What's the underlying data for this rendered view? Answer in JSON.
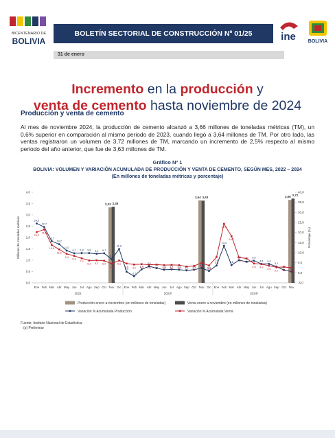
{
  "header": {
    "left_logo": [
      "BICENTENARIO DE",
      "BOLIVIA"
    ],
    "title": "BOLETÍN SECTORIAL DE CONSTRUCCIÓN Nº 01/25",
    "ine_logo": "ine",
    "right_logo": "BOLIVIA",
    "date": "31 de enero"
  },
  "headline": {
    "parts": [
      "Incremento",
      " en la ",
      "producción",
      " y",
      "venta de cemento",
      " hasta noviembre de 2024"
    ]
  },
  "section": {
    "heading": "Producción y venta de cemento",
    "paragraph": "Al mes de noviembre 2024, la producción de cemento alcanzó a 3,66 millones de toneladas métricas (TM), un 0,6% superior en comparación al mismo periodo de 2023, cuando llegó a 3,64 millones de TM. Por otro lado, las ventas registraron un volumen de 3,72 millones de TM, marcando un incremento de 2,5% respecto al mismo periodo del año anterior, que fue de 3,63 millones de TM."
  },
  "chart_data": {
    "type": "combo",
    "label": "Gráfico Nº 1",
    "title": "BOLIVIA: VOLUMEN Y VARIACIÓN ACUMULADA DE PRODUCCIÓN Y VENTA DE CEMENTO, SEGÚN MES, 2022 – 2024",
    "subtitle": "(En millones de toneladas métricas y porcentaje)",
    "categories": [
      "Ene",
      "Feb",
      "Mar",
      "Abr",
      "May",
      "Jun",
      "Jul",
      "Ago",
      "Sep",
      "Oct",
      "Nov",
      "Dic",
      "Ene",
      "Feb",
      "Mar",
      "Abr",
      "May",
      "Jun",
      "Jul",
      "Ago",
      "Sep",
      "Oct",
      "Nov",
      "Dic",
      "Ene",
      "Feb",
      "Mar",
      "Abr",
      "May",
      "Jun",
      "Jul",
      "Ago",
      "Sep",
      "Oct",
      "Nov"
    ],
    "x_groups": [
      "2022",
      "2023ᵖ",
      "2024ᵖ"
    ],
    "ylabel": "Millones de toneladas métricas",
    "y2label": "Porcentaje (%)",
    "ylim": [
      0,
      4
    ],
    "yticks": [
      {
        "value": 0,
        "label": "0,0"
      },
      {
        "value": 0.5,
        "label": "0,5"
      },
      {
        "value": 1,
        "label": "1,0"
      },
      {
        "value": 1.5,
        "label": "1,5"
      },
      {
        "value": 2,
        "label": "2,0"
      },
      {
        "value": 2.5,
        "label": "2,5"
      },
      {
        "value": 3,
        "label": "3,0"
      },
      {
        "value": 3.5,
        "label": "3,5"
      },
      {
        "value": 4,
        "label": "4,0"
      }
    ],
    "y2lim": [
      -5,
      40
    ],
    "y2ticks": [
      {
        "value": -5,
        "label": "-5,0"
      },
      {
        "value": 0,
        "label": "0,0"
      },
      {
        "value": 5,
        "label": "5,0"
      },
      {
        "value": 10,
        "label": "10,0"
      },
      {
        "value": 15,
        "label": "15,0"
      },
      {
        "value": 20,
        "label": "20,0"
      },
      {
        "value": 25,
        "label": "25,0"
      },
      {
        "value": 30,
        "label": "30,0"
      },
      {
        "value": 35,
        "label": "35,0"
      },
      {
        "value": 40,
        "label": "40,0"
      }
    ],
    "series": [
      {
        "name": "Producción enero a noviembre (en millones de toneladas)",
        "type": "bar",
        "color": "#a39382",
        "values": [
          null,
          null,
          null,
          null,
          null,
          null,
          null,
          null,
          null,
          null,
          3.33,
          null,
          null,
          null,
          null,
          null,
          null,
          null,
          null,
          null,
          null,
          null,
          3.64,
          null,
          null,
          null,
          null,
          null,
          null,
          null,
          null,
          null,
          null,
          null,
          3.66
        ],
        "value_labels": [
          null,
          null,
          null,
          null,
          null,
          null,
          null,
          null,
          null,
          null,
          "3,33",
          null,
          null,
          null,
          null,
          null,
          null,
          null,
          null,
          null,
          null,
          null,
          "3,64",
          null,
          null,
          null,
          null,
          null,
          null,
          null,
          null,
          null,
          null,
          null,
          "3,66"
        ]
      },
      {
        "name": "Venta enero a noviembre (en millones de toneladas)",
        "type": "bar",
        "color": "#4d4d4d",
        "values": [
          null,
          null,
          null,
          null,
          null,
          null,
          null,
          null,
          null,
          null,
          3.36,
          null,
          null,
          null,
          null,
          null,
          null,
          null,
          null,
          null,
          null,
          null,
          3.63,
          null,
          null,
          null,
          null,
          null,
          null,
          null,
          null,
          null,
          null,
          null,
          3.72
        ],
        "value_labels": [
          null,
          null,
          null,
          null,
          null,
          null,
          null,
          null,
          null,
          null,
          "3,36",
          null,
          null,
          null,
          null,
          null,
          null,
          null,
          null,
          null,
          null,
          null,
          "3,63",
          null,
          null,
          null,
          null,
          null,
          null,
          null,
          null,
          null,
          null,
          null,
          "3,72"
        ]
      },
      {
        "name": "Variación % Acumulada Producción",
        "type": "line",
        "axis": "y2",
        "color": "#1f3864",
        "marker": "circle",
        "values": [
          24.5,
          22.7,
          15.7,
          14.2,
          11.0,
          9.7,
          9.8,
          9.8,
          9.4,
          9.7,
          6.7,
          11.8,
          0.5,
          -1.7,
          1.7,
          3.2,
          2.3,
          1.5,
          1.7,
          1.5,
          1.2,
          1.5,
          2.4,
          0.9,
          3.6,
          13.4,
          3.8,
          6.3,
          5.5,
          6.0,
          4.4,
          4.4,
          3.1,
          1.4,
          0.6
        ],
        "value_labels": [
          "24,5",
          "22,7",
          "15,7",
          "14,2",
          "11,0",
          "9,7",
          "9,8",
          "9,8",
          "9,4",
          "9,7",
          "6,7",
          "11,8",
          "0,5",
          "-1,7",
          "1,7",
          "3,2",
          "2,3",
          "1,5",
          "1,7",
          "1,5",
          "1,2",
          "1,5",
          "2,4",
          "0,9",
          "3,6",
          "13,4",
          "3,8",
          "6,3",
          "5,5",
          "6,0",
          "4,4",
          "4,4",
          "3,1",
          "1,4",
          "0,6"
        ]
      },
      {
        "name": "Variación % Acumulada Venta",
        "type": "line",
        "axis": "y2",
        "color": "#c0262d",
        "marker": "square",
        "values": [
          20.2,
          21.5,
          13.8,
          11.6,
          9.4,
          8.4,
          7.2,
          6.1,
          6.2,
          6.0,
          4.5,
          6.1,
          4.6,
          4.1,
          4.3,
          4.0,
          4.1,
          3.8,
          3.9,
          3.8,
          3.1,
          3.4,
          4.9,
          3.6,
          7.8,
          24.3,
          18.2,
          7.6,
          7.1,
          4.6,
          4.3,
          3.5,
          2.7,
          2.9,
          2.5
        ],
        "value_labels": [
          "20,2",
          "21,5",
          "13,8",
          "11,6",
          "9,4",
          "8,4",
          "7,2",
          "6,1",
          "6,2",
          "6,0",
          "4,5",
          "6,1",
          "4,6",
          "4,1",
          "4,3",
          "4,0",
          "4,1",
          "3,8",
          "3,9",
          "3,8",
          "3,1",
          "3,4",
          "4,9",
          "3,6",
          "7,8",
          "24,3",
          "18,2",
          "7,6",
          "7,1",
          "4,6",
          "4,3",
          "3,5",
          "2,7",
          "2,9",
          "2,5"
        ]
      }
    ],
    "source": "Fuente: Instituto Nacional de Estadística",
    "note": "(p) Preliminar"
  }
}
